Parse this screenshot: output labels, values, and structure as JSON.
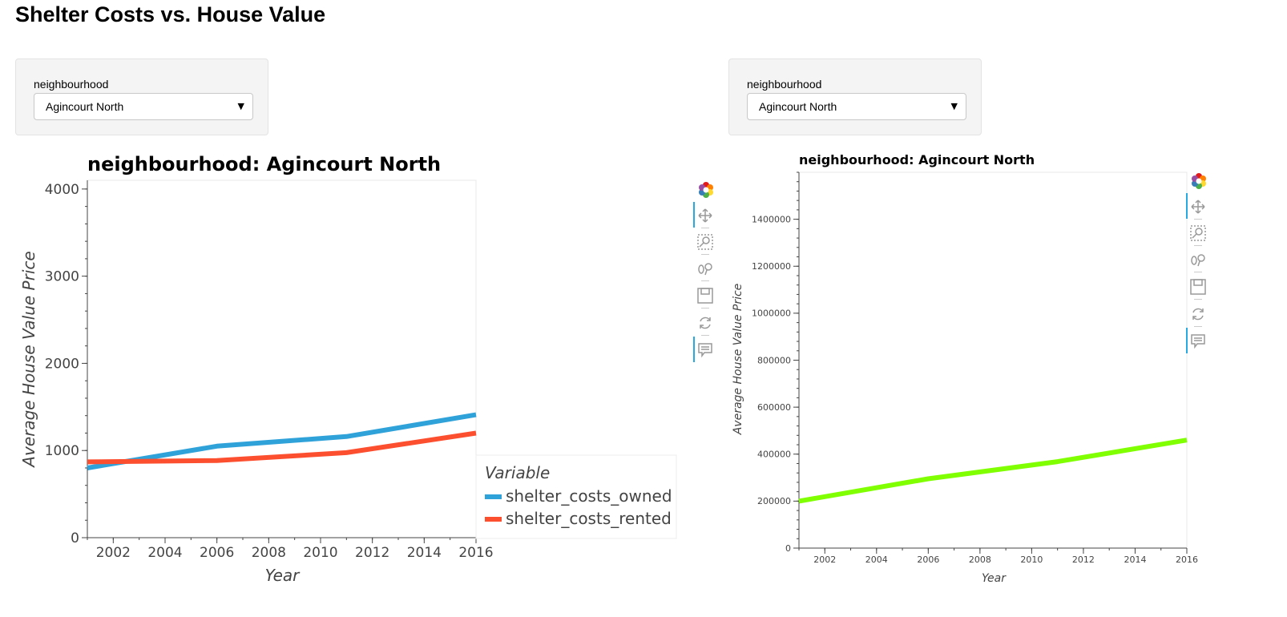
{
  "page": {
    "title": "Shelter Costs vs. House Value"
  },
  "widgets": [
    {
      "label": "neighbourhood",
      "selected": "Agincourt North"
    },
    {
      "label": "neighbourhood",
      "selected": "Agincourt North"
    }
  ],
  "toolbar": {
    "tools": [
      "bokeh-logo-icon",
      "pan-icon",
      "box-zoom-icon",
      "wheel-zoom-icon",
      "save-icon",
      "reset-icon",
      "hover-icon"
    ]
  },
  "chart_data": [
    {
      "type": "line",
      "title": "neighbourhood: Agincourt North",
      "xlabel": "Year",
      "ylabel": "Average House Value Price",
      "xlim": [
        2001,
        2016
      ],
      "ylim": [
        0,
        4100
      ],
      "x_ticks": [
        "2002",
        "2004",
        "2006",
        "2008",
        "2010",
        "2012",
        "2014",
        "2016"
      ],
      "y_ticks": [
        "0",
        "1000",
        "2000",
        "3000",
        "4000"
      ],
      "legend": {
        "title": "Variable",
        "placement": "bottom-right, outside"
      },
      "series": [
        {
          "name": "shelter_costs_owned",
          "color": "#30a2da",
          "x": [
            2001,
            2006,
            2011,
            2016
          ],
          "y": [
            800,
            1050,
            1160,
            1410
          ]
        },
        {
          "name": "shelter_costs_rented",
          "color": "#fc4f30",
          "x": [
            2001,
            2006,
            2011,
            2016
          ],
          "y": [
            870,
            885,
            975,
            1200
          ]
        }
      ]
    },
    {
      "type": "line",
      "title": "neighbourhood: Agincourt North",
      "xlabel": "Year",
      "ylabel": "Average House Value Price",
      "xlim": [
        2001,
        2016
      ],
      "ylim": [
        0,
        1600000
      ],
      "x_ticks": [
        "2002",
        "2004",
        "2006",
        "2008",
        "2010",
        "2012",
        "2014",
        "2016"
      ],
      "y_ticks": [
        "0",
        "200000",
        "400000",
        "600000",
        "800000",
        "1000000",
        "1200000",
        "1400000"
      ],
      "series": [
        {
          "color": "#7fff00",
          "x": [
            2001,
            2006,
            2011,
            2016
          ],
          "y": [
            200000,
            295000,
            368000,
            460000
          ]
        }
      ]
    }
  ]
}
